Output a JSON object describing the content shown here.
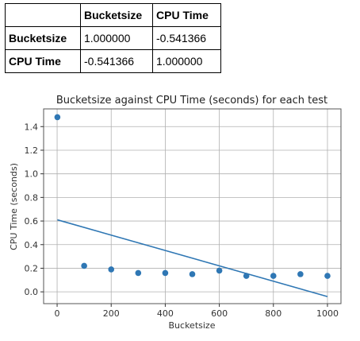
{
  "table": {
    "corner": "",
    "columns": [
      "Bucketsize",
      "CPU Time"
    ],
    "rows": [
      {
        "label": "Bucketsize",
        "values": [
          "1.000000",
          "-0.541366"
        ]
      },
      {
        "label": "CPU Time",
        "values": [
          "-0.541366",
          "1.000000"
        ]
      }
    ]
  },
  "chart_data": {
    "type": "scatter",
    "title": "Bucketsize against CPU Time (seconds) for each test",
    "xlabel": "Bucketsize",
    "ylabel": "CPU Time (seconds)",
    "xlim": [
      -50,
      1050
    ],
    "ylim": [
      -0.1,
      1.55
    ],
    "xticks": [
      0,
      200,
      400,
      600,
      800,
      1000
    ],
    "yticks": [
      0.0,
      0.2,
      0.4,
      0.6,
      0.8,
      1.0,
      1.2,
      1.4
    ],
    "grid": true,
    "points": {
      "x": [
        1,
        100,
        200,
        300,
        400,
        500,
        600,
        700,
        800,
        900,
        1000
      ],
      "y": [
        1.48,
        0.22,
        0.19,
        0.16,
        0.16,
        0.15,
        0.18,
        0.135,
        0.135,
        0.15,
        0.135
      ]
    },
    "fit_line": {
      "x": [
        1,
        1000
      ],
      "y": [
        0.61,
        -0.04
      ]
    },
    "color": "#2f77b4"
  }
}
